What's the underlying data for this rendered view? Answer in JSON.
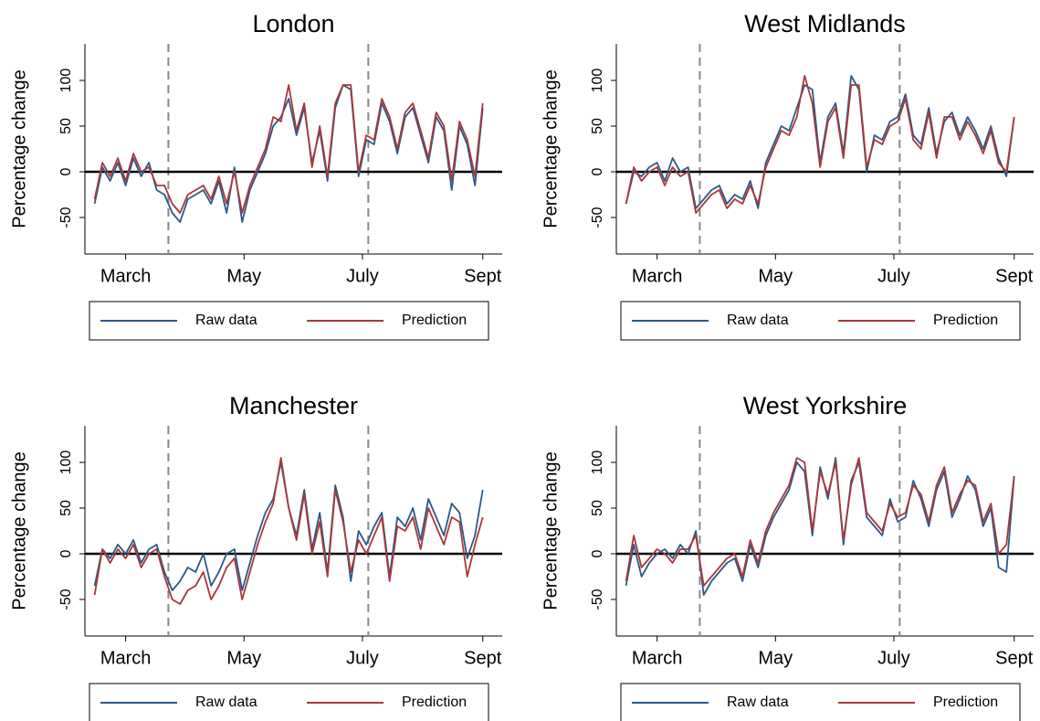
{
  "chart_data": [
    {
      "type": "line",
      "title": "London",
      "ylabel": "Percentage change",
      "legend": "bottom",
      "hline": 0,
      "vlines": [
        82,
        185
      ],
      "xlim": [
        39,
        254
      ],
      "ylim": [
        -90,
        140
      ],
      "yticks": [
        -50,
        0,
        50,
        100
      ],
      "xticks": [
        {
          "value": 60,
          "label": "March"
        },
        {
          "value": 121,
          "label": "May"
        },
        {
          "value": 182,
          "label": "July"
        },
        {
          "value": 244,
          "label": "Sept"
        }
      ],
      "x": [
        44,
        48,
        52,
        56,
        60,
        64,
        68,
        72,
        76,
        80,
        84,
        88,
        92,
        96,
        100,
        104,
        108,
        112,
        116,
        120,
        124,
        128,
        132,
        136,
        140,
        144,
        148,
        152,
        156,
        160,
        164,
        168,
        172,
        176,
        180,
        184,
        188,
        192,
        196,
        200,
        204,
        208,
        212,
        216,
        220,
        224,
        228,
        232,
        236,
        240,
        244
      ],
      "series": [
        {
          "name": "Raw data",
          "color": "#2b5a87",
          "values": [
            -35,
            5,
            -10,
            10,
            -15,
            15,
            -5,
            10,
            -20,
            -25,
            -45,
            -55,
            -30,
            -25,
            -20,
            -35,
            -10,
            -45,
            5,
            -55,
            -20,
            0,
            20,
            50,
            60,
            80,
            40,
            70,
            10,
            45,
            -10,
            70,
            95,
            90,
            -5,
            35,
            30,
            75,
            55,
            20,
            60,
            70,
            40,
            10,
            60,
            45,
            -20,
            50,
            30,
            -15,
            70
          ]
        },
        {
          "name": "Prediction",
          "color": "#a8383b",
          "values": [
            -30,
            10,
            -5,
            15,
            -10,
            20,
            0,
            5,
            -15,
            -15,
            -35,
            -45,
            -25,
            -20,
            -15,
            -30,
            -5,
            -35,
            0,
            -45,
            -15,
            5,
            25,
            60,
            55,
            95,
            45,
            75,
            5,
            50,
            -5,
            75,
            95,
            95,
            0,
            40,
            35,
            80,
            60,
            25,
            65,
            75,
            45,
            15,
            65,
            50,
            -10,
            55,
            35,
            -5,
            75
          ]
        }
      ]
    },
    {
      "type": "line",
      "title": "West Midlands",
      "ylabel": "Percentage change",
      "legend": "bottom",
      "hline": 0,
      "vlines": [
        82,
        185
      ],
      "xlim": [
        39,
        254
      ],
      "ylim": [
        -90,
        140
      ],
      "yticks": [
        -50,
        0,
        50,
        100
      ],
      "xticks": [
        {
          "value": 60,
          "label": "March"
        },
        {
          "value": 121,
          "label": "May"
        },
        {
          "value": 182,
          "label": "July"
        },
        {
          "value": 244,
          "label": "Sept"
        }
      ],
      "x": [
        44,
        48,
        52,
        56,
        60,
        64,
        68,
        72,
        76,
        80,
        84,
        88,
        92,
        96,
        100,
        104,
        108,
        112,
        116,
        120,
        124,
        128,
        132,
        136,
        140,
        144,
        148,
        152,
        156,
        160,
        164,
        168,
        172,
        176,
        180,
        184,
        188,
        192,
        196,
        200,
        204,
        208,
        212,
        216,
        220,
        224,
        228,
        232,
        236,
        240,
        244
      ],
      "series": [
        {
          "name": "Raw data",
          "color": "#2b5a87",
          "values": [
            -35,
            0,
            -5,
            5,
            10,
            -10,
            15,
            0,
            5,
            -40,
            -30,
            -20,
            -15,
            -35,
            -25,
            -30,
            -10,
            -40,
            10,
            30,
            50,
            45,
            70,
            95,
            90,
            10,
            60,
            75,
            20,
            105,
            90,
            0,
            40,
            35,
            55,
            60,
            85,
            40,
            30,
            70,
            20,
            55,
            65,
            40,
            60,
            45,
            25,
            50,
            15,
            -5,
            60
          ]
        },
        {
          "name": "Prediction",
          "color": "#a8383b",
          "values": [
            -35,
            5,
            -10,
            0,
            5,
            -15,
            5,
            -5,
            0,
            -45,
            -35,
            -25,
            -20,
            -40,
            -30,
            -35,
            -15,
            -35,
            5,
            25,
            45,
            40,
            60,
            105,
            75,
            5,
            55,
            70,
            15,
            95,
            95,
            5,
            35,
            30,
            50,
            55,
            80,
            35,
            25,
            65,
            15,
            60,
            60,
            35,
            55,
            40,
            20,
            45,
            10,
            0,
            60
          ]
        }
      ]
    },
    {
      "type": "line",
      "title": "Manchester",
      "ylabel": "Percentage change",
      "legend": "bottom",
      "hline": 0,
      "vlines": [
        82,
        185
      ],
      "xlim": [
        39,
        254
      ],
      "ylim": [
        -90,
        140
      ],
      "yticks": [
        -50,
        0,
        50,
        100
      ],
      "xticks": [
        {
          "value": 60,
          "label": "March"
        },
        {
          "value": 121,
          "label": "May"
        },
        {
          "value": 182,
          "label": "July"
        },
        {
          "value": 244,
          "label": "Sept"
        }
      ],
      "x": [
        44,
        48,
        52,
        56,
        60,
        64,
        68,
        72,
        76,
        80,
        84,
        88,
        92,
        96,
        100,
        104,
        108,
        112,
        116,
        120,
        124,
        128,
        132,
        136,
        140,
        144,
        148,
        152,
        156,
        160,
        164,
        168,
        172,
        176,
        180,
        184,
        188,
        192,
        196,
        200,
        204,
        208,
        212,
        216,
        220,
        224,
        228,
        232,
        236,
        240,
        244
      ],
      "series": [
        {
          "name": "Raw data",
          "color": "#2b5a87",
          "values": [
            -35,
            5,
            -5,
            10,
            0,
            15,
            -10,
            5,
            10,
            -20,
            -40,
            -30,
            -15,
            -20,
            0,
            -35,
            -20,
            0,
            5,
            -40,
            -10,
            20,
            45,
            60,
            100,
            50,
            20,
            70,
            5,
            45,
            -20,
            75,
            40,
            -30,
            25,
            10,
            30,
            45,
            -25,
            40,
            30,
            50,
            15,
            60,
            40,
            20,
            55,
            45,
            -5,
            20,
            70
          ]
        },
        {
          "name": "Prediction",
          "color": "#a8383b",
          "values": [
            -45,
            5,
            -10,
            5,
            -5,
            10,
            -15,
            0,
            5,
            -25,
            -50,
            -55,
            -40,
            -35,
            -20,
            -50,
            -35,
            -15,
            -5,
            -50,
            -20,
            10,
            35,
            55,
            105,
            50,
            15,
            65,
            0,
            35,
            -25,
            70,
            35,
            -20,
            15,
            0,
            20,
            40,
            -30,
            30,
            25,
            40,
            5,
            50,
            30,
            10,
            40,
            35,
            -25,
            10,
            40
          ]
        }
      ]
    },
    {
      "type": "line",
      "title": "West Yorkshire",
      "ylabel": "Percentage change",
      "legend": "bottom",
      "hline": 0,
      "vlines": [
        82,
        185
      ],
      "xlim": [
        39,
        254
      ],
      "ylim": [
        -90,
        140
      ],
      "yticks": [
        -50,
        0,
        50,
        100
      ],
      "xticks": [
        {
          "value": 60,
          "label": "March"
        },
        {
          "value": 121,
          "label": "May"
        },
        {
          "value": 182,
          "label": "July"
        },
        {
          "value": 244,
          "label": "Sept"
        }
      ],
      "x": [
        44,
        48,
        52,
        56,
        60,
        64,
        68,
        72,
        76,
        80,
        84,
        88,
        92,
        96,
        100,
        104,
        108,
        112,
        116,
        120,
        124,
        128,
        132,
        136,
        140,
        144,
        148,
        152,
        156,
        160,
        164,
        168,
        172,
        176,
        180,
        184,
        188,
        192,
        196,
        200,
        204,
        208,
        212,
        216,
        220,
        224,
        228,
        232,
        236,
        240,
        244
      ],
      "series": [
        {
          "name": "Raw data",
          "color": "#2b5a87",
          "values": [
            -35,
            10,
            -25,
            -10,
            0,
            5,
            -5,
            10,
            0,
            25,
            -45,
            -30,
            -20,
            -10,
            -5,
            -30,
            10,
            -15,
            20,
            40,
            55,
            70,
            100,
            90,
            20,
            95,
            60,
            105,
            10,
            80,
            100,
            40,
            30,
            20,
            60,
            35,
            40,
            80,
            60,
            30,
            70,
            90,
            40,
            60,
            85,
            70,
            30,
            50,
            -15,
            -20,
            85
          ]
        },
        {
          "name": "Prediction",
          "color": "#a8383b",
          "values": [
            -30,
            20,
            -15,
            -5,
            5,
            0,
            -10,
            5,
            5,
            20,
            -35,
            -25,
            -15,
            -5,
            0,
            -25,
            15,
            -10,
            25,
            45,
            60,
            75,
            105,
            100,
            25,
            90,
            65,
            100,
            15,
            75,
            105,
            45,
            35,
            25,
            55,
            40,
            45,
            75,
            65,
            35,
            75,
            95,
            45,
            65,
            80,
            75,
            35,
            55,
            0,
            10,
            85
          ]
        }
      ]
    }
  ]
}
